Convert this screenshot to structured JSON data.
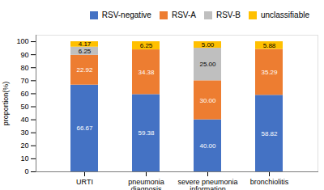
{
  "chart_data": {
    "type": "bar",
    "stacked": true,
    "categories": [
      "URTI",
      "pneumonia\ndiagnosis",
      "severe pneumonia\ninformation",
      "bronchiolitis"
    ],
    "series": [
      {
        "name": "RSV-negative",
        "color": "#4472C4",
        "values": [
          66.67,
          59.38,
          40.0,
          58.82
        ],
        "value_labels": [
          "66.67",
          "59.38",
          "40.00",
          "58.82"
        ]
      },
      {
        "name": "RSV-A",
        "color": "#ED7D31",
        "values": [
          22.92,
          34.38,
          30.0,
          35.29
        ],
        "value_labels": [
          "22.92",
          "34.38",
          "30.00",
          "35.29"
        ]
      },
      {
        "name": "RSV-B",
        "color": "#BFBFBF",
        "values": [
          6.25,
          0.0,
          25.0,
          0.0
        ],
        "value_labels": [
          "6.25",
          null,
          "25.00",
          null
        ]
      },
      {
        "name": "unclassifiable",
        "color": "#FFC000",
        "values": [
          4.17,
          6.25,
          5.0,
          5.88
        ],
        "value_labels": [
          "4.17",
          "6.25",
          "5.00",
          "5.88"
        ]
      }
    ],
    "ylabel": "proportion(%)",
    "ylim": [
      0,
      105
    ],
    "yticks": [
      0,
      10,
      20,
      30,
      40,
      50,
      60,
      70,
      80,
      90,
      100
    ],
    "legend": "upper right",
    "data_labels": true,
    "grid": false
  }
}
